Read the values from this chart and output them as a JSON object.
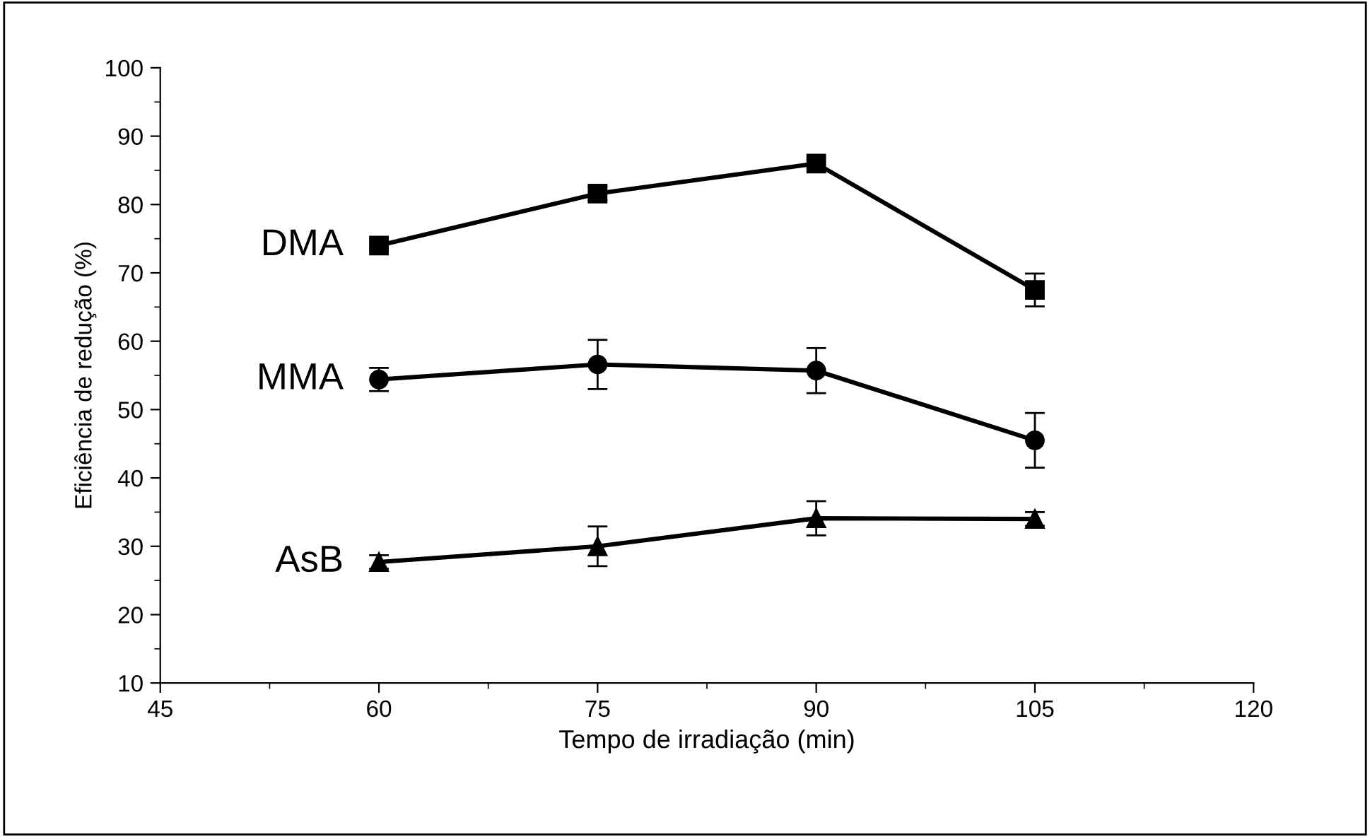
{
  "chart_data": {
    "type": "line",
    "xlabel": "Tempo de irradiação (min)",
    "ylabel": "Eficiência de redução (%)",
    "x": [
      60,
      75,
      90,
      105
    ],
    "series": [
      {
        "name": "DMA",
        "color": "#000000",
        "marker": "square",
        "values": [
          74,
          81.6,
          86,
          67.5
        ],
        "errors": [
          null,
          1,
          null,
          2.4
        ]
      },
      {
        "name": "MMA",
        "color": "#000000",
        "marker": "circle",
        "values": [
          54.4,
          56.6,
          55.7,
          45.5
        ],
        "errors": [
          1.7,
          3.6,
          3.3,
          4
        ]
      },
      {
        "name": "AsB",
        "color": "#000000",
        "marker": "triangle",
        "values": [
          27.7,
          30,
          34.1,
          34
        ],
        "errors": [
          1,
          2.9,
          2.5,
          1
        ]
      }
    ],
    "xlim": [
      45,
      120
    ],
    "xticks": [
      45,
      60,
      75,
      90,
      105,
      120
    ],
    "ylim": [
      10,
      100
    ],
    "yticks": [
      10,
      20,
      30,
      40,
      50,
      60,
      70,
      80,
      90,
      100
    ],
    "grid": false,
    "legend": false,
    "line_style": "solid"
  }
}
